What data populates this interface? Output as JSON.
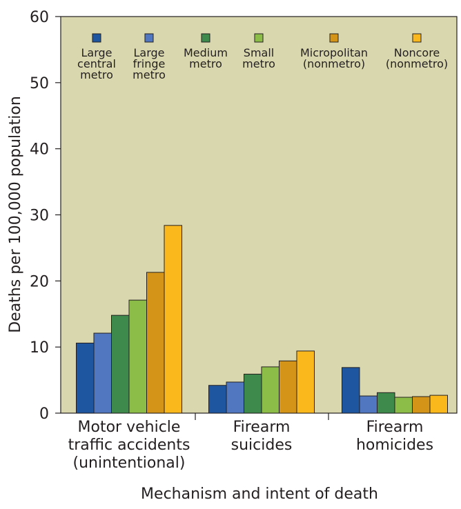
{
  "chart_data": {
    "type": "bar",
    "xlabel": "Mechanism and intent of death",
    "ylabel": "Deaths per 100,000 population",
    "ylim": [
      0,
      60
    ],
    "yticks": [
      0,
      10,
      20,
      30,
      40,
      50,
      60
    ],
    "grid": false,
    "legend_position": "top",
    "plot_background": "#d9d7ad",
    "categories": [
      [
        "Motor vehicle",
        "traffic accidents",
        "(unintentional)"
      ],
      [
        "Firearm",
        "suicides"
      ],
      [
        "Firearm",
        "homicides"
      ]
    ],
    "series": [
      {
        "name": [
          "Large",
          "central",
          "metro"
        ],
        "color": "#1f56a0",
        "values": [
          10.6,
          4.2,
          6.9
        ]
      },
      {
        "name": [
          "Large",
          "fringe",
          "metro"
        ],
        "color": "#5077c0",
        "values": [
          12.1,
          4.7,
          2.6
        ]
      },
      {
        "name": [
          "Medium",
          "metro"
        ],
        "color": "#3e8a4d",
        "values": [
          14.8,
          5.9,
          3.1
        ]
      },
      {
        "name": [
          "Small",
          "metro"
        ],
        "color": "#8cbd48",
        "values": [
          17.1,
          7.0,
          2.4
        ]
      },
      {
        "name": [
          "Micropolitan",
          "(nonmetro)"
        ],
        "color": "#d49417",
        "values": [
          21.3,
          7.9,
          2.5
        ]
      },
      {
        "name": [
          "Noncore",
          "(nonmetro)"
        ],
        "color": "#fbb81c",
        "values": [
          28.4,
          9.4,
          2.7
        ]
      }
    ]
  }
}
